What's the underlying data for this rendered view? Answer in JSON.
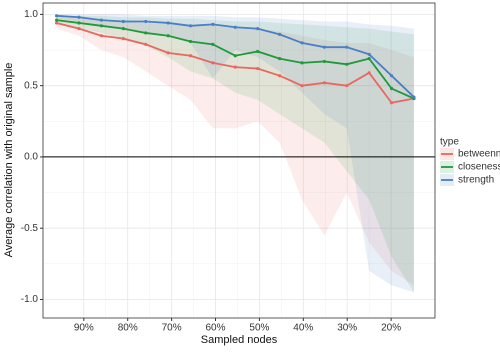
{
  "chart_data": {
    "type": "line",
    "x_label": "Sampled nodes",
    "y_label": "Average correlation with original sample",
    "x": [
      96.2,
      91.1,
      86.0,
      81.0,
      75.9,
      70.8,
      65.7,
      60.6,
      55.5,
      50.4,
      45.4,
      40.3,
      35.2,
      30.1,
      25.0,
      19.9,
      14.8
    ],
    "series": [
      {
        "name": "betweenness",
        "color": "#e8675f",
        "values": [
          0.94,
          0.9,
          0.85,
          0.83,
          0.79,
          0.73,
          0.71,
          0.66,
          0.63,
          0.62,
          0.57,
          0.5,
          0.52,
          0.5,
          0.59,
          0.38,
          0.41
        ],
        "lower": [
          0.9,
          0.85,
          0.75,
          0.7,
          0.6,
          0.5,
          0.4,
          0.2,
          0.2,
          0.25,
          0.1,
          -0.3,
          -0.55,
          -0.25,
          -0.6,
          -0.8,
          -0.9
        ],
        "upper": [
          0.98,
          0.97,
          0.96,
          0.95,
          0.94,
          0.93,
          0.92,
          0.92,
          0.9,
          0.9,
          0.88,
          0.85,
          0.82,
          0.8,
          0.8,
          0.75,
          0.7
        ]
      },
      {
        "name": "closeness",
        "color": "#1f9a3a",
        "values": [
          0.96,
          0.94,
          0.92,
          0.9,
          0.87,
          0.85,
          0.81,
          0.79,
          0.71,
          0.74,
          0.69,
          0.66,
          0.67,
          0.65,
          0.69,
          0.48,
          0.41
        ],
        "lower": [
          0.93,
          0.9,
          0.87,
          0.82,
          0.78,
          0.7,
          0.6,
          0.55,
          0.45,
          0.4,
          0.3,
          0.2,
          0.1,
          -0.1,
          -0.3,
          -0.7,
          -0.95
        ],
        "upper": [
          0.99,
          0.99,
          0.99,
          0.98,
          0.98,
          0.97,
          0.97,
          0.96,
          0.95,
          0.95,
          0.94,
          0.93,
          0.92,
          0.91,
          0.9,
          0.88,
          0.86
        ]
      },
      {
        "name": "strength",
        "color": "#4a7ec5",
        "values": [
          0.99,
          0.98,
          0.96,
          0.95,
          0.95,
          0.94,
          0.92,
          0.93,
          0.91,
          0.9,
          0.86,
          0.8,
          0.77,
          0.77,
          0.72,
          0.57,
          0.42
        ],
        "lower": [
          0.97,
          0.95,
          0.92,
          0.9,
          0.88,
          0.85,
          0.8,
          0.55,
          0.75,
          0.7,
          0.6,
          0.45,
          0.3,
          0.2,
          -0.8,
          -0.9,
          -0.95
        ],
        "upper": [
          1.0,
          1.0,
          1.0,
          1.0,
          0.99,
          0.99,
          0.99,
          0.99,
          0.98,
          0.98,
          0.97,
          0.96,
          0.95,
          0.95,
          0.93,
          0.92,
          0.9
        ]
      }
    ],
    "xlim": [
      99.3,
      10.0
    ],
    "ylim": [
      -1.13,
      1.08
    ],
    "xticks": [
      {
        "value": 90,
        "label": "90%"
      },
      {
        "value": 80,
        "label": "80%"
      },
      {
        "value": 70,
        "label": "70%"
      },
      {
        "value": 60,
        "label": "60%"
      },
      {
        "value": 50,
        "label": "50%"
      },
      {
        "value": 40,
        "label": "40%"
      },
      {
        "value": 30,
        "label": "30%"
      },
      {
        "value": 20,
        "label": "20%"
      }
    ],
    "yticks": [
      {
        "value": 1,
        "label": "1.0"
      },
      {
        "value": 0.5,
        "label": "0.5"
      },
      {
        "value": 0,
        "label": "0.0"
      },
      {
        "value": -0.5,
        "label": "-0.5"
      },
      {
        "value": -1,
        "label": "-1.0"
      }
    ],
    "hline": 0,
    "grid": true,
    "legend_title": "type",
    "legend_position": "right"
  }
}
